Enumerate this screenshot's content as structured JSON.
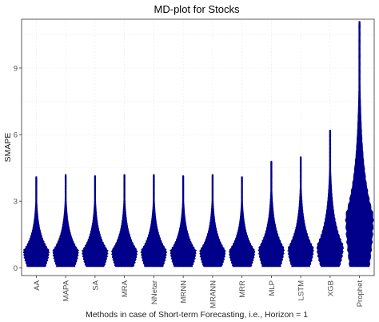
{
  "chart_data": {
    "type": "violin",
    "title": "MD-plot for Stocks",
    "xlabel": "Methods in case of Short-term Forecasting, i.e., Horizon = 1",
    "ylabel": "SMAPE",
    "ylim": [
      -0.35,
      11.2
    ],
    "yticks": [
      0,
      3,
      6,
      9
    ],
    "grid": true,
    "fill_color": "#00008b",
    "categories": [
      "AA",
      "MAPA",
      "SA",
      "MRA",
      "NNetar",
      "MRNN",
      "MRANN",
      "MRR",
      "MLP",
      "LSTM",
      "XGB",
      "Prophet"
    ],
    "series": [
      {
        "category": "AA",
        "min": 0.05,
        "max": 4.1,
        "mode": 0.75,
        "max_width": 0.85
      },
      {
        "category": "MAPA",
        "min": 0.05,
        "max": 4.2,
        "mode": 0.75,
        "max_width": 0.85
      },
      {
        "category": "SA",
        "min": 0.05,
        "max": 4.15,
        "mode": 0.75,
        "max_width": 0.85
      },
      {
        "category": "MRA",
        "min": 0.05,
        "max": 4.2,
        "mode": 0.75,
        "max_width": 0.85
      },
      {
        "category": "NNetar",
        "min": 0.05,
        "max": 4.2,
        "mode": 0.75,
        "max_width": 0.85
      },
      {
        "category": "MRNN",
        "min": 0.05,
        "max": 4.15,
        "mode": 0.75,
        "max_width": 0.85
      },
      {
        "category": "MRANN",
        "min": 0.05,
        "max": 4.2,
        "mode": 0.75,
        "max_width": 0.85
      },
      {
        "category": "MRR",
        "min": 0.05,
        "max": 4.1,
        "mode": 0.75,
        "max_width": 0.85
      },
      {
        "category": "MLP",
        "min": 0.05,
        "max": 4.8,
        "mode": 0.85,
        "max_width": 0.85
      },
      {
        "category": "LSTM",
        "min": 0.05,
        "max": 5.0,
        "mode": 0.85,
        "max_width": 0.85
      },
      {
        "category": "XGB",
        "min": 0.05,
        "max": 6.2,
        "mode": 0.95,
        "max_width": 0.88
      },
      {
        "category": "Prophet",
        "min": 0.05,
        "max": 11.1,
        "mode": 2.3,
        "max_width": 0.92
      }
    ]
  }
}
